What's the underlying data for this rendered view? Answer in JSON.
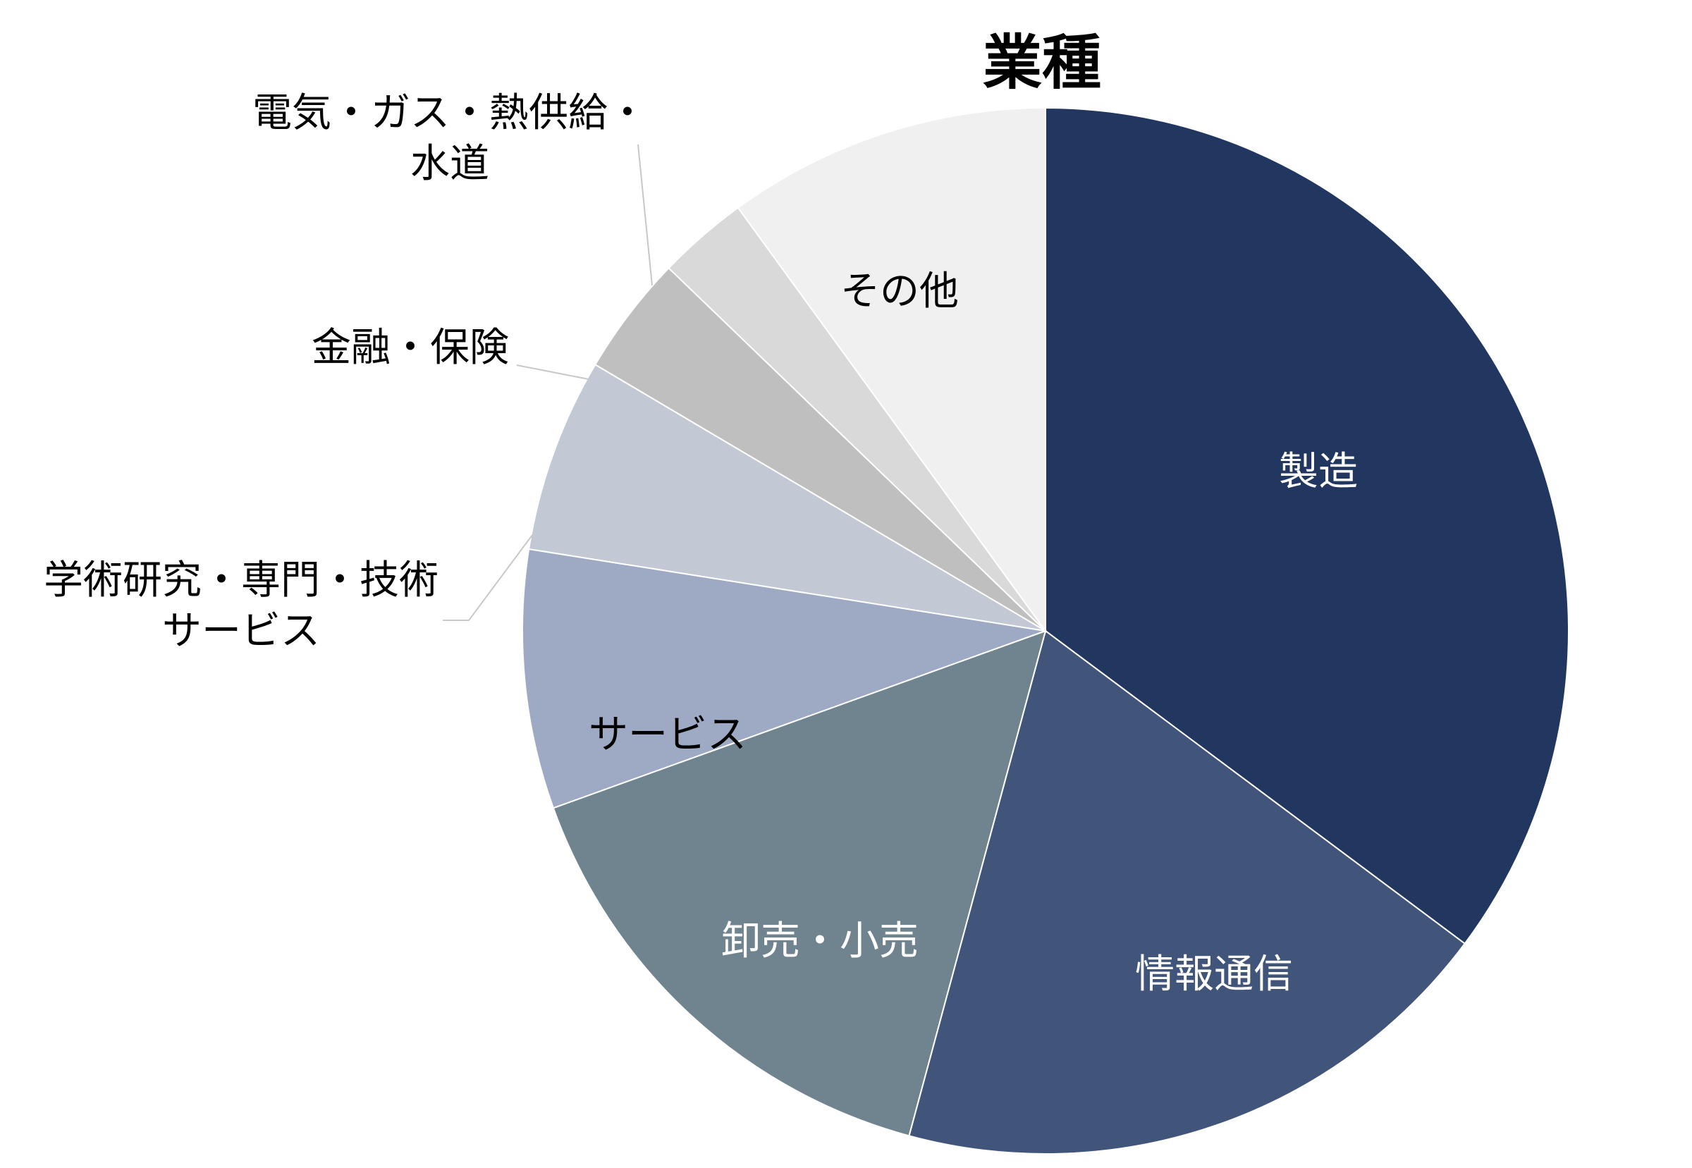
{
  "chart_data": {
    "type": "pie",
    "title": "業種",
    "start": "12 o'clock",
    "direction": "clockwise",
    "legend": "none",
    "labels_position": "inside slices, leader lines for small slices",
    "slices": [
      {
        "label": [
          "製造"
        ],
        "value": 35.2,
        "color": "#213760",
        "label_color": "#ffffff"
      },
      {
        "label": [
          "情報通信"
        ],
        "value": 19.0,
        "color": "#41557b",
        "label_color": "#ffffff"
      },
      {
        "label": [
          "卸売・小売"
        ],
        "value": 15.3,
        "color": "#708490",
        "label_color": "#ffffff"
      },
      {
        "label": [
          "サービス"
        ],
        "value": 8.0,
        "color": "#9eaac3",
        "label_color": "#000000"
      },
      {
        "label": [
          "学術研究・専門・技術",
          "サービス"
        ],
        "value": 6.0,
        "color": "#c3c8d5",
        "label_color": "#000000"
      },
      {
        "label": [
          "金融・保険"
        ],
        "value": 3.7,
        "color": "#bfbfbf",
        "label_color": "#000000"
      },
      {
        "label": [
          "電気・ガス・熱供給・",
          "水道"
        ],
        "value": 2.8,
        "color": "#d9d9d9",
        "label_color": "#000000"
      },
      {
        "label": [
          "その他"
        ],
        "value": 10.0,
        "color": "#f0f0f0",
        "label_color": "#000000"
      }
    ]
  }
}
